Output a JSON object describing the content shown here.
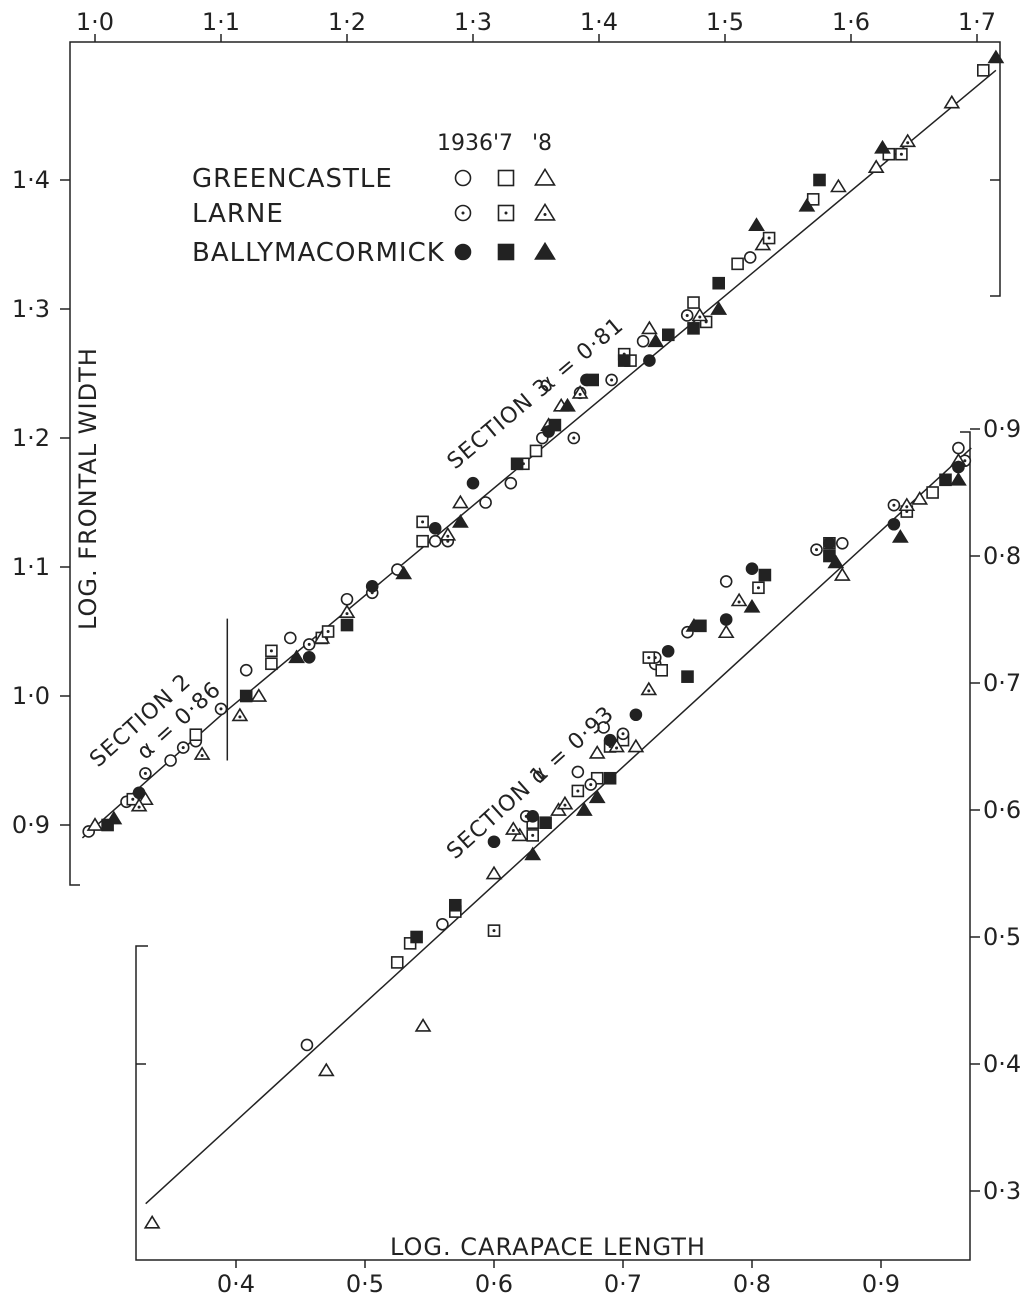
{
  "chart_data": [
    {
      "type": "scatter",
      "panel": "upper",
      "xlabel": "",
      "ylabel": "LOG. FRONTAL WIDTH",
      "xlim": [
        0.99,
        1.72
      ],
      "ylim": [
        0.85,
        1.5
      ],
      "x_ticks": [
        1.0,
        1.1,
        1.2,
        1.3,
        1.4,
        1.5,
        1.6,
        1.7
      ],
      "x_tick_labels": [
        "1·0",
        "1·1",
        "1·2",
        "1·3",
        "1·4",
        "1·5",
        "1·6",
        "1·7"
      ],
      "y_ticks": [
        0.9,
        1.0,
        1.1,
        1.2,
        1.3,
        1.4
      ],
      "y_tick_labels": [
        "0·9",
        "1·0",
        "1·1",
        "1·2",
        "1·3",
        "1·4"
      ],
      "annotations": [
        {
          "text": "SECTION 2",
          "alpha_label": "α = 0·86"
        },
        {
          "text": "SECTION 3",
          "alpha_label": "α = 0·81"
        }
      ],
      "fit_lines": [
        {
          "x": [
            0.99,
            1.1
          ],
          "y": [
            0.89,
            0.985
          ]
        },
        {
          "x": [
            1.1,
            1.715
          ],
          "y": [
            0.985,
            1.485
          ]
        }
      ],
      "section_break_x": 1.105,
      "series": [
        {
          "name": "GREENCASTLE 1936",
          "marker": "open-circle",
          "points": [
            [
              0.995,
              0.895
            ],
            [
              1.025,
              0.918
            ],
            [
              1.06,
              0.95
            ],
            [
              1.08,
              0.965
            ],
            [
              1.12,
              1.02
            ],
            [
              1.155,
              1.045
            ],
            [
              1.2,
              1.075
            ],
            [
              1.24,
              1.098
            ],
            [
              1.27,
              1.12
            ],
            [
              1.31,
              1.15
            ],
            [
              1.33,
              1.165
            ],
            [
              1.355,
              1.2
            ],
            [
              1.385,
              1.235
            ],
            [
              1.435,
              1.275
            ],
            [
              1.52,
              1.34
            ]
          ]
        },
        {
          "name": "GREENCASTLE '7",
          "marker": "open-square",
          "points": [
            [
              1.08,
              0.97
            ],
            [
              1.14,
              1.025
            ],
            [
              1.18,
              1.045
            ],
            [
              1.26,
              1.12
            ],
            [
              1.35,
              1.19
            ],
            [
              1.425,
              1.26
            ],
            [
              1.475,
              1.305
            ],
            [
              1.51,
              1.335
            ],
            [
              1.57,
              1.385
            ],
            [
              1.63,
              1.42
            ],
            [
              1.705,
              1.485
            ]
          ]
        },
        {
          "name": "GREENCASTLE '8",
          "marker": "open-triangle",
          "points": [
            [
              1.0,
              0.9
            ],
            [
              1.04,
              0.92
            ],
            [
              1.13,
              1.0
            ],
            [
              1.18,
              1.045
            ],
            [
              1.29,
              1.15
            ],
            [
              1.37,
              1.225
            ],
            [
              1.44,
              1.285
            ],
            [
              1.53,
              1.35
            ],
            [
              1.59,
              1.395
            ],
            [
              1.62,
              1.41
            ],
            [
              1.68,
              1.46
            ]
          ]
        },
        {
          "name": "LARNE 1936",
          "marker": "dotted-circle",
          "points": [
            [
              1.04,
              0.94
            ],
            [
              1.07,
              0.96
            ],
            [
              1.1,
              0.99
            ],
            [
              1.17,
              1.04
            ],
            [
              1.22,
              1.08
            ],
            [
              1.28,
              1.12
            ],
            [
              1.38,
              1.2
            ],
            [
              1.41,
              1.245
            ],
            [
              1.47,
              1.295
            ]
          ]
        },
        {
          "name": "LARNE '7",
          "marker": "dotted-square",
          "points": [
            [
              1.03,
              0.92
            ],
            [
              1.14,
              1.035
            ],
            [
              1.185,
              1.05
            ],
            [
              1.26,
              1.135
            ],
            [
              1.34,
              1.18
            ],
            [
              1.42,
              1.265
            ],
            [
              1.485,
              1.29
            ],
            [
              1.535,
              1.355
            ],
            [
              1.64,
              1.42
            ]
          ]
        },
        {
          "name": "LARNE '8",
          "marker": "dotted-triangle",
          "points": [
            [
              1.035,
              0.915
            ],
            [
              1.085,
              0.955
            ],
            [
              1.115,
              0.985
            ],
            [
              1.2,
              1.065
            ],
            [
              1.28,
              1.125
            ],
            [
              1.36,
              1.21
            ],
            [
              1.385,
              1.235
            ],
            [
              1.48,
              1.295
            ],
            [
              1.645,
              1.43
            ]
          ]
        },
        {
          "name": "BALLYMACORMICK 1936",
          "marker": "filled-circle",
          "points": [
            [
              1.035,
              0.925
            ],
            [
              1.17,
              1.03
            ],
            [
              1.22,
              1.085
            ],
            [
              1.27,
              1.13
            ],
            [
              1.3,
              1.165
            ],
            [
              1.36,
              1.205
            ],
            [
              1.39,
              1.245
            ],
            [
              1.44,
              1.26
            ]
          ]
        },
        {
          "name": "BALLYMACORMICK '7",
          "marker": "filled-square",
          "points": [
            [
              1.01,
              0.9
            ],
            [
              1.12,
              1.0
            ],
            [
              1.2,
              1.055
            ],
            [
              1.335,
              1.18
            ],
            [
              1.365,
              1.21
            ],
            [
              1.395,
              1.245
            ],
            [
              1.42,
              1.26
            ],
            [
              1.455,
              1.28
            ],
            [
              1.475,
              1.285
            ],
            [
              1.495,
              1.32
            ],
            [
              1.575,
              1.4
            ]
          ]
        },
        {
          "name": "BALLYMACORMICK '8",
          "marker": "filled-triangle",
          "points": [
            [
              1.015,
              0.905
            ],
            [
              1.16,
              1.03
            ],
            [
              1.245,
              1.095
            ],
            [
              1.29,
              1.135
            ],
            [
              1.375,
              1.225
            ],
            [
              1.445,
              1.275
            ],
            [
              1.495,
              1.3
            ],
            [
              1.525,
              1.365
            ],
            [
              1.565,
              1.38
            ],
            [
              1.625,
              1.425
            ],
            [
              1.715,
              1.495
            ]
          ]
        }
      ]
    },
    {
      "type": "scatter",
      "panel": "lower",
      "xlabel": "LOG. CARAPACE LENGTH",
      "ylabel": "",
      "xlim": [
        0.33,
        0.97
      ],
      "ylim": [
        0.27,
        0.9
      ],
      "x_ticks": [
        0.4,
        0.5,
        0.6,
        0.7,
        0.8,
        0.9
      ],
      "x_tick_labels": [
        "0·4",
        "0·5",
        "0·6",
        "0·7",
        "0·8",
        "0·9"
      ],
      "y_ticks": [
        0.3,
        0.4,
        0.5,
        0.6,
        0.7,
        0.8,
        0.9
      ],
      "y_tick_labels": [
        "0·3",
        "0·4",
        "0·5",
        "0·6",
        "0·7",
        "0·8",
        "0·9"
      ],
      "annotations": [
        {
          "text": "SECTION 1",
          "alpha_label": "α = 0·93"
        }
      ],
      "fit_lines": [
        {
          "x": [
            0.33,
            0.97
          ],
          "y": [
            0.29,
            0.885
          ]
        }
      ],
      "series": [
        {
          "name": "GREENCASTLE 1936",
          "marker": "open-circle",
          "points": [
            [
              0.455,
              0.415
            ],
            [
              0.56,
              0.51
            ],
            [
              0.665,
              0.63
            ],
            [
              0.685,
              0.665
            ],
            [
              0.725,
              0.715
            ],
            [
              0.75,
              0.74
            ],
            [
              0.78,
              0.78
            ],
            [
              0.87,
              0.81
            ],
            [
              0.96,
              0.885
            ]
          ]
        },
        {
          "name": "GREENCASTLE '7",
          "marker": "open-square",
          "points": [
            [
              0.525,
              0.48
            ],
            [
              0.535,
              0.495
            ],
            [
              0.57,
              0.52
            ],
            [
              0.63,
              0.59
            ],
            [
              0.68,
              0.625
            ],
            [
              0.7,
              0.655
            ],
            [
              0.73,
              0.71
            ],
            [
              0.86,
              0.81
            ],
            [
              0.94,
              0.85
            ]
          ]
        },
        {
          "name": "GREENCASTLE '8",
          "marker": "open-triangle",
          "points": [
            [
              0.335,
              0.275
            ],
            [
              0.47,
              0.395
            ],
            [
              0.545,
              0.43
            ],
            [
              0.6,
              0.55
            ],
            [
              0.62,
              0.58
            ],
            [
              0.65,
              0.6
            ],
            [
              0.68,
              0.645
            ],
            [
              0.71,
              0.65
            ],
            [
              0.78,
              0.74
            ],
            [
              0.87,
              0.785
            ],
            [
              0.93,
              0.845
            ]
          ]
        },
        {
          "name": "LARNE 1936",
          "marker": "dotted-circle",
          "points": [
            [
              0.625,
              0.595
            ],
            [
              0.675,
              0.62
            ],
            [
              0.7,
              0.66
            ],
            [
              0.725,
              0.72
            ],
            [
              0.85,
              0.805
            ],
            [
              0.91,
              0.84
            ],
            [
              0.965,
              0.875
            ]
          ]
        },
        {
          "name": "LARNE '7",
          "marker": "dotted-square",
          "points": [
            [
              0.6,
              0.505
            ],
            [
              0.63,
              0.58
            ],
            [
              0.665,
              0.615
            ],
            [
              0.69,
              0.65
            ],
            [
              0.72,
              0.72
            ],
            [
              0.805,
              0.775
            ],
            [
              0.92,
              0.835
            ]
          ]
        },
        {
          "name": "LARNE '8",
          "marker": "dotted-triangle",
          "points": [
            [
              0.615,
              0.585
            ],
            [
              0.655,
              0.605
            ],
            [
              0.695,
              0.65
            ],
            [
              0.72,
              0.695
            ],
            [
              0.79,
              0.765
            ],
            [
              0.92,
              0.84
            ],
            [
              0.96,
              0.875
            ]
          ]
        },
        {
          "name": "BALLYMACORMICK 1936",
          "marker": "filled-circle",
          "points": [
            [
              0.6,
              0.575
            ],
            [
              0.63,
              0.595
            ],
            [
              0.69,
              0.655
            ],
            [
              0.71,
              0.675
            ],
            [
              0.735,
              0.725
            ],
            [
              0.78,
              0.75
            ],
            [
              0.8,
              0.79
            ],
            [
              0.86,
              0.81
            ],
            [
              0.91,
              0.825
            ],
            [
              0.96,
              0.87
            ]
          ]
        },
        {
          "name": "BALLYMACORMICK '7",
          "marker": "filled-square",
          "points": [
            [
              0.54,
              0.5
            ],
            [
              0.57,
              0.525
            ],
            [
              0.64,
              0.59
            ],
            [
              0.69,
              0.625
            ],
            [
              0.75,
              0.705
            ],
            [
              0.76,
              0.745
            ],
            [
              0.81,
              0.785
            ],
            [
              0.86,
              0.8
            ],
            [
              0.95,
              0.86
            ]
          ]
        },
        {
          "name": "BALLYMACORMICK '8",
          "marker": "filled-triangle",
          "points": [
            [
              0.63,
              0.565
            ],
            [
              0.67,
              0.6
            ],
            [
              0.68,
              0.61
            ],
            [
              0.755,
              0.745
            ],
            [
              0.8,
              0.76
            ],
            [
              0.865,
              0.795
            ],
            [
              0.915,
              0.815
            ],
            [
              0.96,
              0.86
            ]
          ]
        }
      ]
    }
  ],
  "legend": {
    "years": [
      "1936",
      "'7",
      "'8"
    ],
    "rows": [
      {
        "label": "GREENCASTLE",
        "markers": [
          "open-circle",
          "open-square",
          "open-triangle"
        ]
      },
      {
        "label": "LARNE",
        "markers": [
          "dotted-circle",
          "dotted-square",
          "dotted-triangle"
        ]
      },
      {
        "label": "BALLYMACORMICK",
        "markers": [
          "filled-circle",
          "filled-square",
          "filled-triangle"
        ]
      }
    ]
  },
  "colors": {
    "ink": "#222222",
    "background": "#ffffff"
  }
}
